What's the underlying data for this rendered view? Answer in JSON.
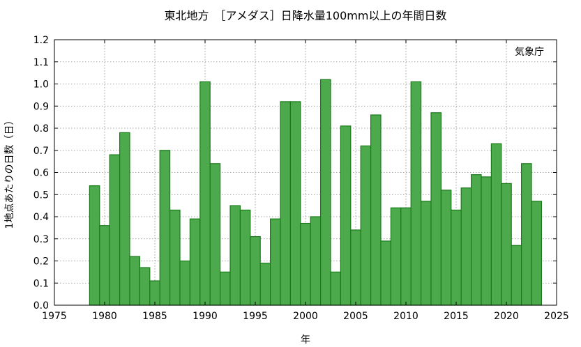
{
  "chart_data": {
    "type": "bar",
    "title": "東北地方　［アメダス］日降水量100mm以上の年間日数",
    "xlabel": "年",
    "ylabel": "1地点あたりの日数（日）",
    "source_label": "気象庁",
    "xlim": [
      1975,
      2025
    ],
    "ylim": [
      0.0,
      1.2
    ],
    "x_ticks": [
      "1975",
      "1980",
      "1985",
      "1990",
      "1995",
      "2000",
      "2005",
      "2010",
      "2015",
      "2020",
      "2025"
    ],
    "y_ticks": [
      "0.0",
      "0.1",
      "0.2",
      "0.3",
      "0.4",
      "0.5",
      "0.6",
      "0.7",
      "0.8",
      "0.9",
      "1.0",
      "1.1",
      "1.2"
    ],
    "grid": true,
    "bar_color": "#4caa4c",
    "bar_edge_color": "#1a7a1a",
    "x": [
      1979,
      1980,
      1981,
      1982,
      1983,
      1984,
      1985,
      1986,
      1987,
      1988,
      1989,
      1990,
      1991,
      1992,
      1993,
      1994,
      1995,
      1996,
      1997,
      1998,
      1999,
      2000,
      2001,
      2002,
      2003,
      2004,
      2005,
      2006,
      2007,
      2008,
      2009,
      2010,
      2011,
      2012,
      2013,
      2014,
      2015,
      2016,
      2017,
      2018,
      2019,
      2020,
      2021,
      2022,
      2023
    ],
    "values": [
      0.54,
      0.36,
      0.68,
      0.78,
      0.22,
      0.17,
      0.11,
      0.7,
      0.43,
      0.2,
      0.39,
      1.01,
      0.64,
      0.15,
      0.45,
      0.43,
      0.31,
      0.19,
      0.39,
      0.92,
      0.92,
      0.37,
      0.4,
      1.02,
      0.15,
      0.81,
      0.34,
      0.72,
      0.86,
      0.29,
      0.44,
      0.44,
      1.01,
      0.47,
      0.87,
      0.52,
      0.43,
      0.53,
      0.59,
      0.58,
      0.73,
      0.55,
      0.27,
      0.64,
      0.47
    ]
  }
}
